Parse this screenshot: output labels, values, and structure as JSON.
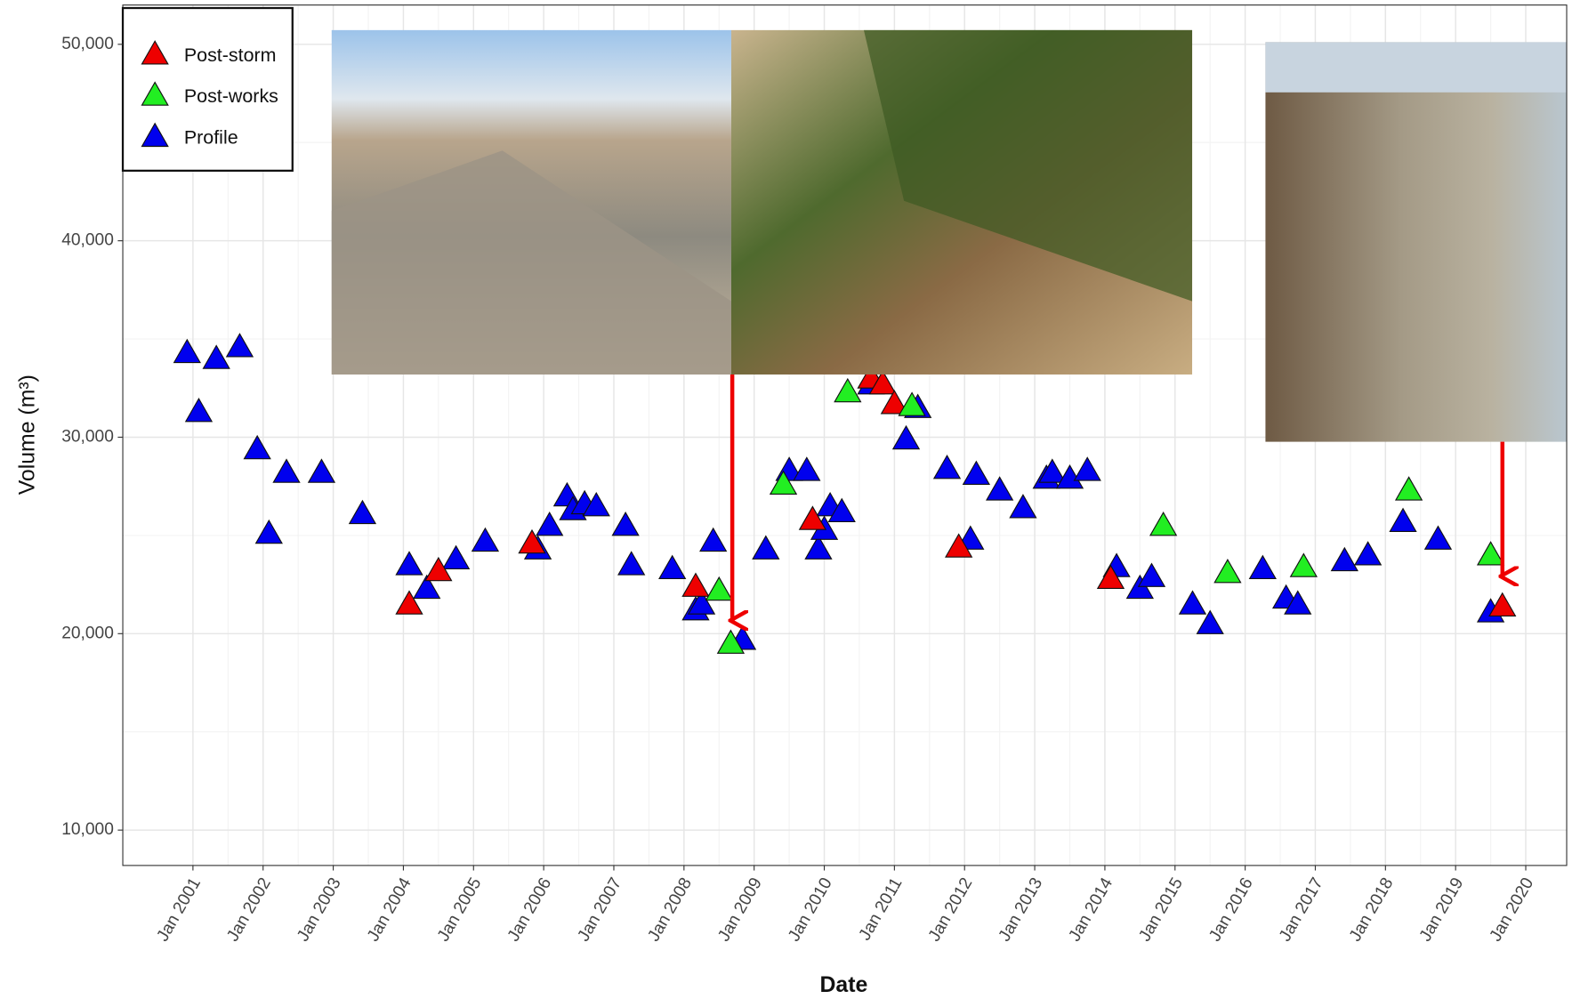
{
  "chart_data": {
    "type": "scatter",
    "x_label": "Date",
    "y_label": "Volume (m³)",
    "xlim": [
      "2000-01",
      "2020-08"
    ],
    "ylim": [
      8200,
      52000
    ],
    "xticks": [
      {
        "value": "2001-01",
        "label": "Jan 2001"
      },
      {
        "value": "2002-01",
        "label": "Jan 2002"
      },
      {
        "value": "2003-01",
        "label": "Jan 2003"
      },
      {
        "value": "2004-01",
        "label": "Jan 2004"
      },
      {
        "value": "2005-01",
        "label": "Jan 2005"
      },
      {
        "value": "2006-01",
        "label": "Jan 2006"
      },
      {
        "value": "2007-01",
        "label": "Jan 2007"
      },
      {
        "value": "2008-01",
        "label": "Jan 2008"
      },
      {
        "value": "2009-01",
        "label": "Jan 2009"
      },
      {
        "value": "2010-01",
        "label": "Jan 2010"
      },
      {
        "value": "2011-01",
        "label": "Jan 2011"
      },
      {
        "value": "2012-01",
        "label": "Jan 2012"
      },
      {
        "value": "2013-01",
        "label": "Jan 2013"
      },
      {
        "value": "2014-01",
        "label": "Jan 2014"
      },
      {
        "value": "2015-01",
        "label": "Jan 2015"
      },
      {
        "value": "2016-01",
        "label": "Jan 2016"
      },
      {
        "value": "2017-01",
        "label": "Jan 2017"
      },
      {
        "value": "2018-01",
        "label": "Jan 2018"
      },
      {
        "value": "2019-01",
        "label": "Jan 2019"
      },
      {
        "value": "2020-01",
        "label": "Jan 2020"
      }
    ],
    "yticks": [
      {
        "value": 10000,
        "label": "10,000"
      },
      {
        "value": 20000,
        "label": "20,000"
      },
      {
        "value": 30000,
        "label": "30,000"
      },
      {
        "value": 40000,
        "label": "40,000"
      },
      {
        "value": 50000,
        "label": "50,000"
      }
    ],
    "grid": true,
    "legend": "top-left",
    "series": [
      {
        "name": "Profile",
        "color": "#0000ee",
        "x": [
          "2000-12",
          "2001-02",
          "2001-05",
          "2001-09",
          "2001-12",
          "2002-02",
          "2002-05",
          "2002-11",
          "2003-06",
          "2004-02",
          "2004-05",
          "2004-10",
          "2005-03",
          "2005-12",
          "2006-02",
          "2006-05",
          "2006-06",
          "2006-08",
          "2006-10",
          "2007-03",
          "2007-04",
          "2007-11",
          "2008-03",
          "2008-04",
          "2008-06",
          "2008-11",
          "2009-03",
          "2009-07",
          "2009-10",
          "2009-12",
          "2010-01",
          "2010-02",
          "2010-04",
          "2010-09",
          "2011-03",
          "2011-05",
          "2011-10",
          "2012-02",
          "2012-03",
          "2012-07",
          "2012-11",
          "2013-03",
          "2013-04",
          "2013-07",
          "2013-10",
          "2014-03",
          "2014-07",
          "2014-09",
          "2015-04",
          "2015-07",
          "2016-04",
          "2016-08",
          "2016-10",
          "2017-06",
          "2017-10",
          "2018-04",
          "2018-10",
          "2019-07"
        ],
        "values": [
          34300,
          31300,
          34000,
          34600,
          29400,
          25100,
          28200,
          28200,
          26100,
          23500,
          22300,
          23800,
          24700,
          24300,
          25500,
          27000,
          26300,
          26600,
          26500,
          25500,
          23500,
          23300,
          21200,
          21500,
          24700,
          19700,
          24300,
          28300,
          28300,
          24300,
          25300,
          26500,
          26200,
          32700,
          29900,
          31500,
          28400,
          24800,
          28100,
          27300,
          26400,
          27900,
          28200,
          27900,
          28300,
          23400,
          22300,
          22900,
          21500,
          20500,
          23300,
          21800,
          21500,
          23700,
          24000,
          25700,
          24800,
          21100
        ]
      },
      {
        "name": "Post-storm",
        "color": "#ee0000",
        "x": [
          "2004-02",
          "2004-07",
          "2005-11",
          "2008-03",
          "2009-11",
          "2010-09",
          "2010-11",
          "2011-01",
          "2011-12",
          "2014-02",
          "2019-09"
        ],
        "values": [
          21500,
          23200,
          24600,
          22400,
          25800,
          33000,
          32700,
          31700,
          24400,
          22800,
          21400
        ]
      },
      {
        "name": "Post-works",
        "color": "#22ee22",
        "x": [
          "2008-07",
          "2008-09",
          "2009-06",
          "2010-05",
          "2011-04",
          "2014-11",
          "2015-10",
          "2016-11",
          "2018-05",
          "2019-07"
        ],
        "values": [
          22200,
          19500,
          27600,
          32300,
          31600,
          25500,
          23100,
          23400,
          27300,
          24000
        ]
      }
    ]
  }
}
